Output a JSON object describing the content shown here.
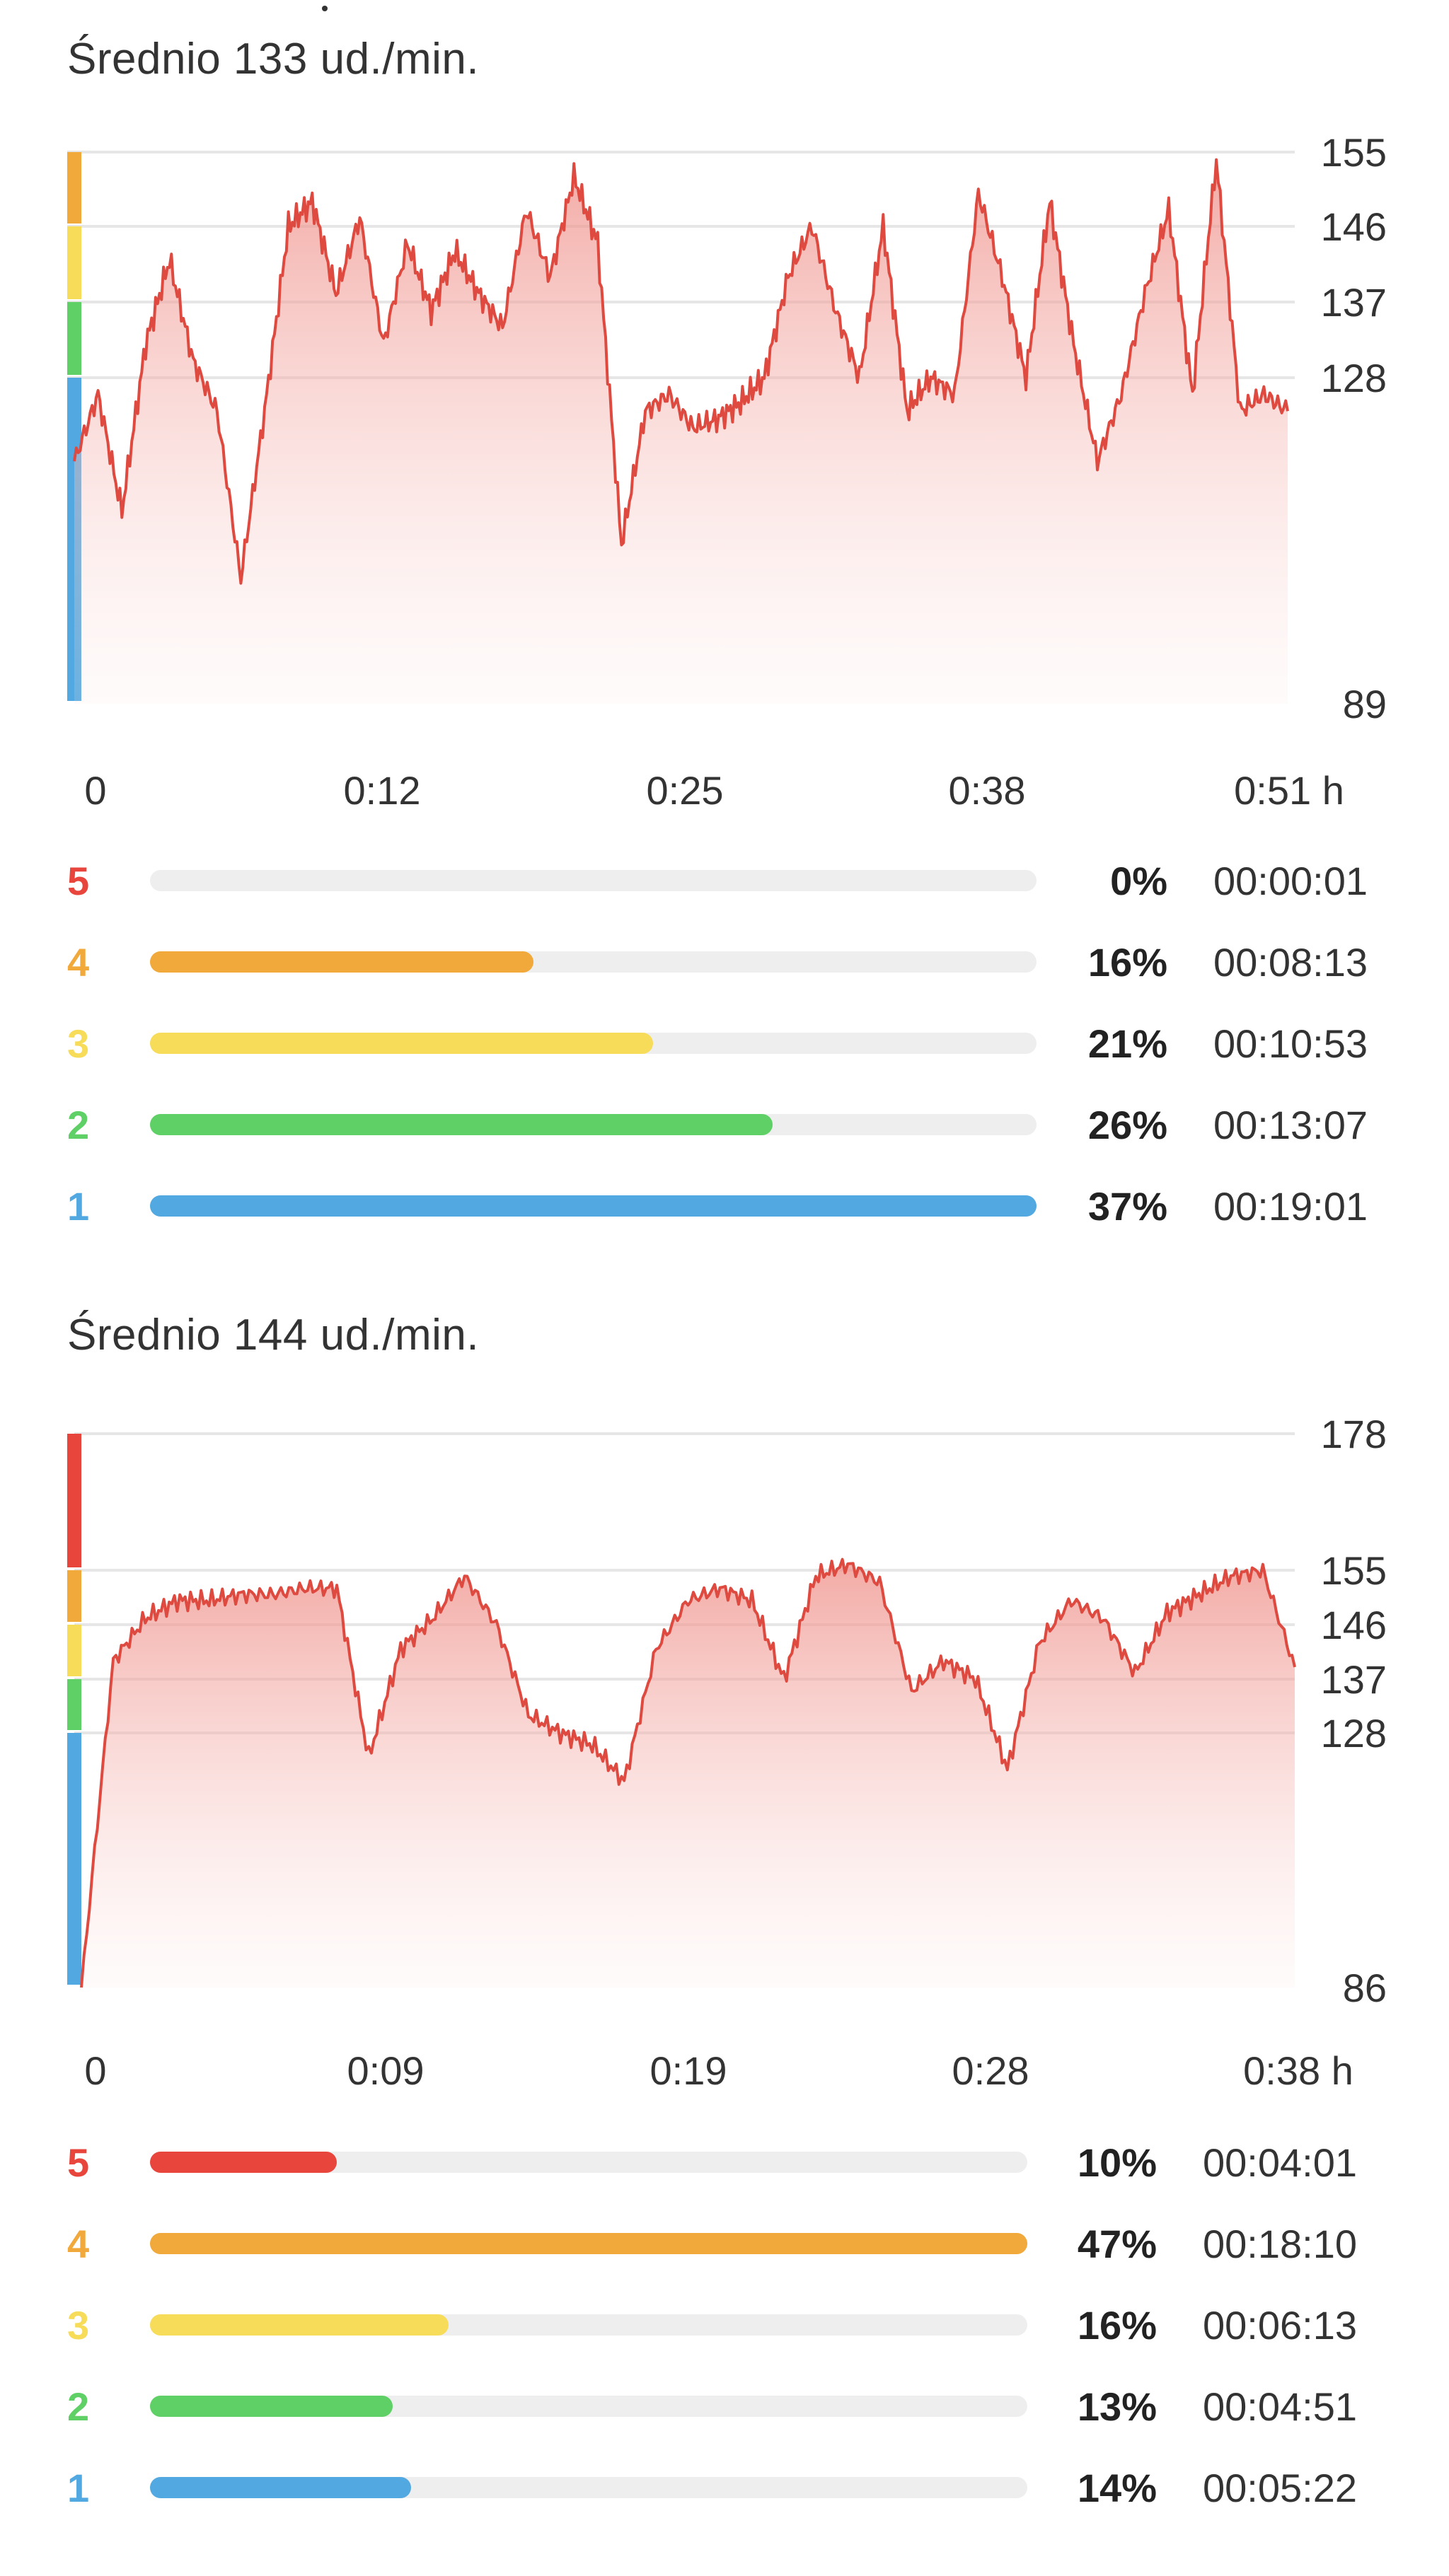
{
  "colors": {
    "zone5": "#e8463c",
    "zone4": "#f0a93a",
    "zone3": "#f7dc5a",
    "zone2": "#5fd065",
    "zone1": "#52a8e0",
    "line": "#de4a40",
    "track": "#eeeeee"
  },
  "charts": [
    {
      "average_label": "Średnio 133 ud./min.",
      "y_ticks": [
        "155",
        "146",
        "137",
        "128",
        "89"
      ],
      "x_ticks": [
        "0",
        "0:12",
        "0:25",
        "0:38",
        "0:51 h"
      ],
      "zones": [
        {
          "zone": "5",
          "percent": "0%",
          "percent_value": 0,
          "duration": "00:00:01"
        },
        {
          "zone": "4",
          "percent": "16%",
          "percent_value": 16,
          "duration": "00:08:13"
        },
        {
          "zone": "3",
          "percent": "21%",
          "percent_value": 21,
          "duration": "00:10:53"
        },
        {
          "zone": "2",
          "percent": "26%",
          "percent_value": 26,
          "duration": "00:13:07"
        },
        {
          "zone": "1",
          "percent": "37%",
          "percent_value": 37,
          "duration": "00:19:01"
        }
      ]
    },
    {
      "average_label": "Średnio 144 ud./min.",
      "y_ticks": [
        "178",
        "155",
        "146",
        "137",
        "128",
        "86"
      ],
      "x_ticks": [
        "0",
        "0:09",
        "0:19",
        "0:28",
        "0:38 h"
      ],
      "zones": [
        {
          "zone": "5",
          "percent": "10%",
          "percent_value": 10,
          "duration": "00:04:01"
        },
        {
          "zone": "4",
          "percent": "47%",
          "percent_value": 47,
          "duration": "00:18:10"
        },
        {
          "zone": "3",
          "percent": "16%",
          "percent_value": 16,
          "duration": "00:06:13"
        },
        {
          "zone": "2",
          "percent": "13%",
          "percent_value": 13,
          "duration": "00:04:51"
        },
        {
          "zone": "1",
          "percent": "14%",
          "percent_value": 14,
          "duration": "00:05:22"
        }
      ]
    }
  ],
  "chart_data": [
    {
      "type": "area",
      "ylabel": "",
      "xlabel": "",
      "ylim": [
        89,
        155
      ],
      "x_unit": "h",
      "x": [
        0,
        1,
        2,
        3,
        4,
        5,
        6,
        7,
        8,
        9,
        10,
        11,
        12,
        13,
        14,
        15,
        16,
        17,
        18,
        19,
        20,
        21,
        22,
        23,
        24,
        25,
        26,
        27,
        28,
        29,
        30,
        31,
        32,
        33,
        34,
        35,
        36,
        37,
        38,
        39,
        40,
        41,
        42,
        43,
        44,
        45,
        46,
        47,
        48,
        49,
        50,
        51
      ],
      "y": [
        118,
        126,
        112,
        132,
        142,
        130,
        124,
        104,
        124,
        146,
        149,
        138,
        147,
        132,
        144,
        136,
        143,
        138,
        134,
        148,
        140,
        152,
        144,
        108,
        124,
        126,
        122,
        123,
        125,
        128,
        140,
        146,
        136,
        128,
        146,
        124,
        128,
        126,
        150,
        140,
        128,
        149,
        132,
        118,
        126,
        138,
        148,
        126,
        154,
        124,
        126,
        124
      ],
      "zone_bands": [
        {
          "zone": "4",
          "from": 146,
          "to": 155
        },
        {
          "zone": "3",
          "from": 137,
          "to": 146
        },
        {
          "zone": "2",
          "from": 128,
          "to": 137
        },
        {
          "zone": "1",
          "from": 89,
          "to": 128
        }
      ]
    },
    {
      "type": "area",
      "ylabel": "",
      "xlabel": "",
      "ylim": [
        86,
        178
      ],
      "x_unit": "h",
      "x": [
        0,
        1,
        2,
        3,
        4,
        5,
        6,
        7,
        8,
        9,
        10,
        11,
        12,
        13,
        14,
        15,
        16,
        17,
        18,
        19,
        20,
        21,
        22,
        23,
        24,
        25,
        26,
        27,
        28,
        29,
        30,
        31,
        32,
        33,
        34,
        35,
        36,
        37,
        38
      ],
      "y": [
        86,
        140,
        147,
        150,
        150,
        151,
        151,
        152,
        152,
        124,
        142,
        147,
        154,
        146,
        131,
        128,
        126,
        120,
        142,
        150,
        152,
        150,
        137,
        154,
        156,
        153,
        135,
        140,
        137,
        122,
        143,
        150,
        147,
        138,
        148,
        151,
        154,
        155,
        139
      ],
      "zone_bands": [
        {
          "zone": "5",
          "from": 155,
          "to": 178
        },
        {
          "zone": "4",
          "from": 146,
          "to": 155
        },
        {
          "zone": "3",
          "from": 137,
          "to": 146
        },
        {
          "zone": "2",
          "from": 128,
          "to": 137
        },
        {
          "zone": "1",
          "from": 86,
          "to": 128
        }
      ]
    }
  ]
}
